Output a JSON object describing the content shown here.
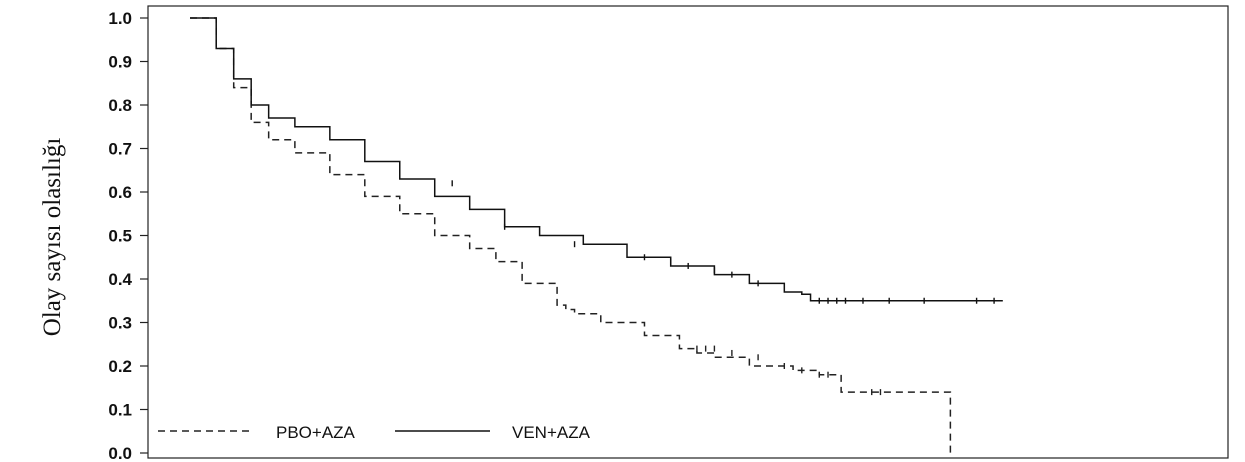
{
  "chart_data": {
    "type": "line",
    "title": "",
    "xlabel": "",
    "ylabel": "Olay sayısı olasılığı",
    "ylim": [
      0,
      1
    ],
    "xlim": [
      0,
      1
    ],
    "yticks": [
      "0.0",
      "0.1",
      "0.2",
      "0.3",
      "0.4",
      "0.5",
      "0.6",
      "0.7",
      "0.8",
      "0.9",
      "1.0"
    ],
    "ytick_values": [
      0,
      0.1,
      0.2,
      0.3,
      0.4,
      0.5,
      0.6,
      0.7,
      0.8,
      0.9,
      1.0
    ],
    "grid": false,
    "legend_position": "bottom-left",
    "series": [
      {
        "name": "PBO+AZA",
        "style": "dashed",
        "color": "#222222",
        "x": [
          0.0,
          0.012,
          0.03,
          0.05,
          0.07,
          0.09,
          0.12,
          0.16,
          0.2,
          0.24,
          0.28,
          0.32,
          0.35,
          0.38,
          0.42,
          0.43,
          0.44,
          0.47,
          0.52,
          0.56,
          0.58,
          0.6,
          0.64,
          0.69,
          0.72,
          0.74,
          0.745,
          0.865,
          0.87
        ],
        "y": [
          1.0,
          1.0,
          0.93,
          0.84,
          0.76,
          0.72,
          0.69,
          0.64,
          0.59,
          0.55,
          0.5,
          0.47,
          0.44,
          0.39,
          0.34,
          0.33,
          0.32,
          0.3,
          0.27,
          0.24,
          0.23,
          0.22,
          0.2,
          0.19,
          0.18,
          0.18,
          0.14,
          0.14,
          0.0
        ],
        "censor_x": [
          0.58,
          0.59,
          0.6,
          0.62,
          0.65,
          0.68,
          0.7,
          0.72,
          0.73,
          0.78,
          0.79
        ],
        "censor_y": [
          0.24,
          0.24,
          0.24,
          0.23,
          0.22,
          0.2,
          0.19,
          0.18,
          0.18,
          0.14,
          0.14
        ]
      },
      {
        "name": "VEN+AZA",
        "style": "solid",
        "color": "#111111",
        "x": [
          0.0,
          0.012,
          0.03,
          0.05,
          0.07,
          0.09,
          0.12,
          0.16,
          0.2,
          0.24,
          0.28,
          0.32,
          0.36,
          0.4,
          0.45,
          0.5,
          0.55,
          0.6,
          0.64,
          0.68,
          0.7,
          0.71,
          0.75,
          0.85,
          0.93
        ],
        "y": [
          1.0,
          1.0,
          0.93,
          0.86,
          0.8,
          0.77,
          0.75,
          0.72,
          0.67,
          0.63,
          0.59,
          0.56,
          0.52,
          0.5,
          0.48,
          0.45,
          0.43,
          0.41,
          0.39,
          0.37,
          0.365,
          0.35,
          0.35,
          0.35,
          0.35
        ],
        "censor_x": [
          0.3,
          0.36,
          0.44,
          0.52,
          0.55,
          0.57,
          0.6,
          0.62,
          0.65,
          0.72,
          0.73,
          0.74,
          0.75,
          0.77,
          0.8,
          0.84,
          0.9,
          0.92
        ],
        "censor_y": [
          0.62,
          0.52,
          0.48,
          0.45,
          0.44,
          0.43,
          0.42,
          0.41,
          0.39,
          0.35,
          0.35,
          0.35,
          0.35,
          0.35,
          0.35,
          0.35,
          0.35,
          0.35
        ]
      }
    ]
  }
}
